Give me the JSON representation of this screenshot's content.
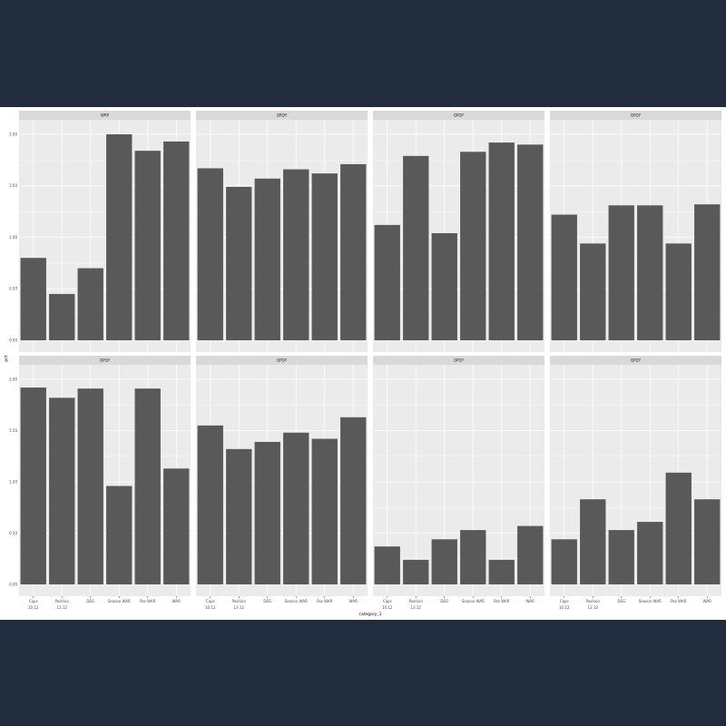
{
  "colors": {
    "background": "#212c3d",
    "plot_bg": "#ebebeb",
    "strip_bg": "#d9d9d9",
    "bar_fill": "#595959",
    "grid": "#ffffff"
  },
  "chart_data": {
    "type": "bar",
    "xlabel": "category_1",
    "ylabel": "pct",
    "ylim": [
      0,
      2.05
    ],
    "y_ticks": [
      "0.00",
      "0.50",
      "1.00",
      "1.50",
      "2.00"
    ],
    "y_tick_values": [
      0,
      0.5,
      1.0,
      1.5,
      2.0
    ],
    "categories": [
      "Caps",
      "Position",
      "DEG",
      "Season WAR",
      "Pos WAR",
      "WAR"
    ],
    "x_secondary_labels": [
      "10.12",
      "13.12"
    ],
    "grid": true,
    "facet_layout": "2 rows x 4 columns",
    "panels": [
      {
        "label": "WRP",
        "values": [
          0.8,
          0.45,
          0.7,
          2.0,
          1.84,
          1.93
        ]
      },
      {
        "label": "QRQY",
        "values": [
          1.67,
          1.49,
          1.57,
          1.66,
          1.62,
          1.71
        ]
      },
      {
        "label": "QPQY",
        "values": [
          1.12,
          1.79,
          1.04,
          1.83,
          1.92,
          1.9
        ]
      },
      {
        "label": "QPQY",
        "values": [
          1.22,
          0.94,
          1.31,
          1.31,
          0.94,
          1.32
        ]
      },
      {
        "label": "QPQY",
        "values": [
          1.92,
          1.82,
          1.91,
          0.96,
          1.91,
          1.13
        ]
      },
      {
        "label": "QPQY",
        "values": [
          1.55,
          1.32,
          1.39,
          1.48,
          1.42,
          1.63
        ]
      },
      {
        "label": "QPQY",
        "values": [
          0.37,
          0.24,
          0.44,
          0.53,
          0.24,
          0.57
        ]
      },
      {
        "label": "QPQY",
        "values": [
          0.44,
          0.83,
          0.53,
          0.61,
          1.09,
          0.83
        ]
      }
    ]
  }
}
